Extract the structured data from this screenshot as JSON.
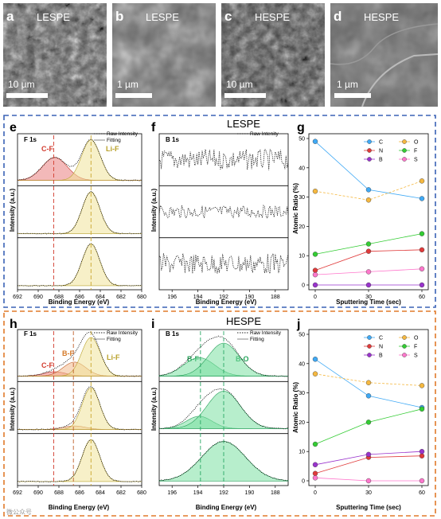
{
  "sem": [
    {
      "letter": "a",
      "title": "LESPE",
      "scale": "10 µm"
    },
    {
      "letter": "b",
      "title": "LESPE",
      "scale": "1 µm"
    },
    {
      "letter": "c",
      "title": "HESPE",
      "scale": "10 µm"
    },
    {
      "letter": "d",
      "title": "HESPE",
      "scale": "1 µm"
    }
  ],
  "group_titles": {
    "top": "LESPE",
    "bottom": "HESPE"
  },
  "axis_text": {
    "binding_energy": "Binding Energy (eV)",
    "intensity": "Intensity (a.u.)",
    "atomic_ratio": "Atomic Ratio (%)",
    "sputtering": "Sputtering Time (sec)"
  },
  "legend_text": {
    "raw": "Raw Intensity",
    "fit": "Fitting",
    "raw_f": "Raw Intenity"
  },
  "xps_labels": {
    "e_tag": "F 1s",
    "e_cf": "C-F",
    "e_lif": "Li-F",
    "f_tag": "B 1s",
    "h_tag": "F 1s",
    "h_cf": "C-F",
    "h_bf": "B-F",
    "h_lif": "Li-F",
    "i_tag": "B 1s",
    "i_bf": "B-F",
    "i_bo": "B-O"
  },
  "panel_letters": {
    "e": "e",
    "f": "f",
    "g": "g",
    "h": "h",
    "i": "i",
    "j": "j"
  },
  "watermark": "微公众号",
  "chart_data": [
    {
      "panel": "e",
      "type": "line",
      "title": "F 1s",
      "xlabel": "Binding Energy (eV)",
      "ylabel": "Intensity (a.u.)",
      "xlim": [
        692,
        680
      ],
      "xticks": [
        692,
        690,
        688,
        686,
        684,
        682,
        680
      ],
      "peaks": [
        {
          "name": "C-F",
          "center": 688.5
        },
        {
          "name": "Li-F",
          "center": 684.9
        }
      ],
      "legend": [
        "Raw Intensity",
        "Fitting"
      ]
    },
    {
      "panel": "f",
      "type": "line",
      "title": "B 1s",
      "xlabel": "Binding Energy (eV)",
      "ylabel": "Intensity (a.u.)",
      "xlim": [
        197,
        187
      ],
      "xticks": [
        196,
        194,
        192,
        190,
        188
      ],
      "legend": [
        "Raw Intenity"
      ]
    },
    {
      "panel": "g",
      "type": "scatter",
      "xlabel": "Sputtering Time (sec)",
      "ylabel": "Atomic Ratio (%)",
      "x": [
        0,
        30,
        60
      ],
      "ylim": [
        0,
        50
      ],
      "yticks": [
        0,
        10,
        20,
        30,
        40,
        50
      ],
      "legend_position": "top-right",
      "series": [
        {
          "name": "C",
          "color": "#3fa9f5",
          "values": [
            49,
            32.5,
            29.5
          ]
        },
        {
          "name": "O",
          "color": "#f5b840",
          "values": [
            32,
            29,
            35.5
          ]
        },
        {
          "name": "N",
          "color": "#e03a3a",
          "values": [
            5,
            11.5,
            12
          ]
        },
        {
          "name": "F",
          "color": "#33cc33",
          "values": [
            10.5,
            14,
            17.5
          ]
        },
        {
          "name": "B",
          "color": "#9933cc",
          "values": [
            0,
            0,
            0
          ]
        },
        {
          "name": "S",
          "color": "#ff77cc",
          "values": [
            3.5,
            4.5,
            5.5
          ]
        }
      ]
    },
    {
      "panel": "h",
      "type": "line",
      "title": "F 1s",
      "xlabel": "Binding Energy (eV)",
      "ylabel": "Intensity (a.u.)",
      "xlim": [
        692,
        680
      ],
      "xticks": [
        692,
        690,
        688,
        686,
        684,
        682,
        680
      ],
      "peaks": [
        {
          "name": "C-F",
          "center": 688.5
        },
        {
          "name": "B-F",
          "center": 686.6
        },
        {
          "name": "Li-F",
          "center": 684.9
        }
      ],
      "legend": [
        "Raw Intensity",
        "Fitting"
      ]
    },
    {
      "panel": "i",
      "type": "line",
      "title": "B 1s",
      "xlabel": "Binding Energy (eV)",
      "ylabel": "Intensity (a.u.)",
      "xlim": [
        197,
        187
      ],
      "xticks": [
        196,
        194,
        192,
        190,
        188
      ],
      "peaks": [
        {
          "name": "B-F",
          "center": 193.8
        },
        {
          "name": "B-O",
          "center": 192.0
        }
      ],
      "legend": [
        "Raw Intensity",
        "Fitting"
      ]
    },
    {
      "panel": "j",
      "type": "scatter",
      "xlabel": "Sputtering Time (sec)",
      "ylabel": "Atomic Ratio (%)",
      "x": [
        0,
        30,
        60
      ],
      "ylim": [
        0,
        50
      ],
      "yticks": [
        0,
        10,
        20,
        30,
        40,
        50
      ],
      "legend_position": "top-right",
      "series": [
        {
          "name": "C",
          "color": "#3fa9f5",
          "values": [
            41.5,
            29,
            25
          ]
        },
        {
          "name": "O",
          "color": "#f5b840",
          "values": [
            36.5,
            33.5,
            32.5
          ]
        },
        {
          "name": "N",
          "color": "#e03a3a",
          "values": [
            2.5,
            8,
            8.5
          ]
        },
        {
          "name": "F",
          "color": "#33cc33",
          "values": [
            12.5,
            20,
            24.5
          ]
        },
        {
          "name": "B",
          "color": "#9933cc",
          "values": [
            5.5,
            9,
            10
          ]
        },
        {
          "name": "S",
          "color": "#ff77cc",
          "values": [
            1,
            0,
            0
          ]
        }
      ]
    }
  ]
}
